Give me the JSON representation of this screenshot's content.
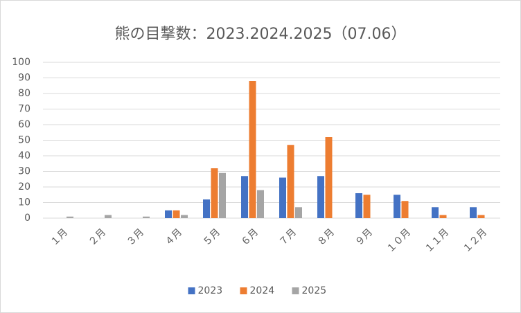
{
  "chart_data": {
    "type": "bar",
    "title": "熊の目撃数：2023.2024.2025（07.06）",
    "categories": [
      "１月",
      "２月",
      "３月",
      "４月",
      "５月",
      "６月",
      "７月",
      "８月",
      "９月",
      "１０月",
      "１１月",
      "１２月"
    ],
    "series": [
      {
        "name": "2023",
        "color": "#4472c4",
        "values": [
          0,
          0,
          0,
          5,
          12,
          27,
          26,
          27,
          16,
          15,
          7,
          7
        ]
      },
      {
        "name": "2024",
        "color": "#ed7d31",
        "values": [
          0,
          0,
          0,
          5,
          32,
          88,
          47,
          52,
          15,
          11,
          2,
          2
        ]
      },
      {
        "name": "2025",
        "color": "#a5a5a5",
        "values": [
          1,
          2,
          1,
          2,
          29,
          18,
          7,
          null,
          null,
          null,
          null,
          null
        ]
      }
    ],
    "ylim": [
      0,
      100
    ],
    "yticks": [
      0,
      10,
      20,
      30,
      40,
      50,
      60,
      70,
      80,
      90,
      100
    ],
    "grid": true,
    "legend": "bottom"
  }
}
